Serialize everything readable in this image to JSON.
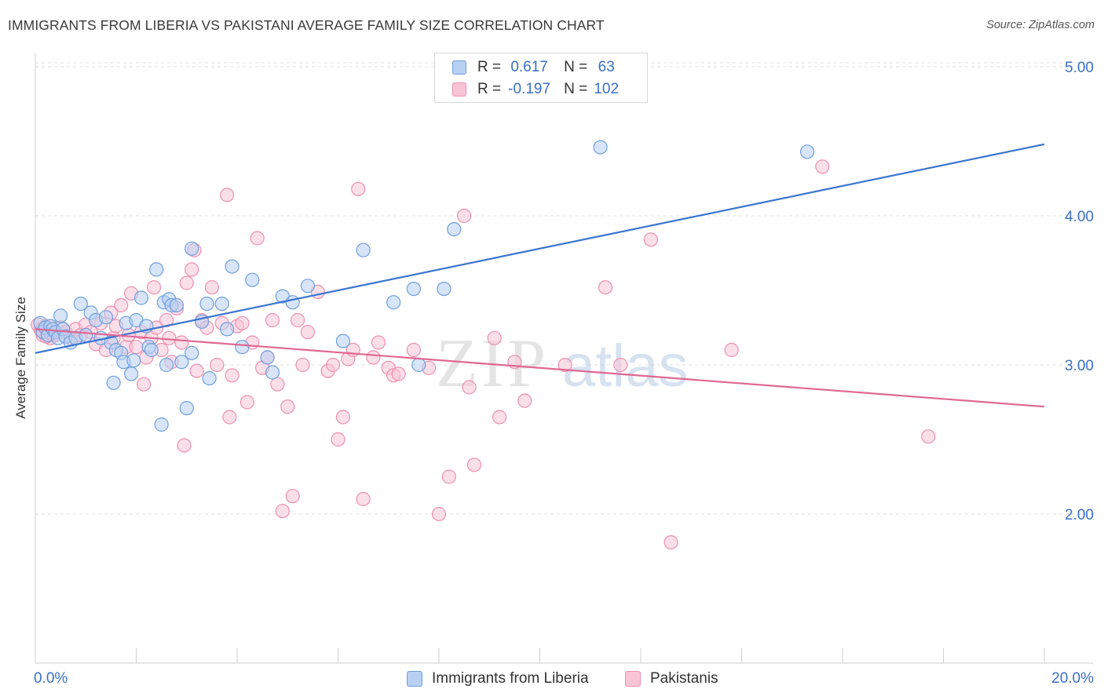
{
  "header": {
    "title": "IMMIGRANTS FROM LIBERIA VS PAKISTANI AVERAGE FAMILY SIZE CORRELATION CHART",
    "source": "Source: ZipAtlas.com"
  },
  "stats_legend": {
    "r_label": "R =",
    "n_label": "N =",
    "rows": [
      {
        "r": "0.617",
        "n": "63",
        "color": "#6fa0e0",
        "fill": "#b8d0f2"
      },
      {
        "r": "-0.197",
        "n": "102",
        "color": "#ee90b0",
        "fill": "#f8c4d6"
      }
    ]
  },
  "bottom_legend": [
    {
      "label": "Immigrants from Liberia",
      "fill": "#b8d0f2",
      "stroke": "#6fa0e0"
    },
    {
      "label": "Pakistanis",
      "fill": "#f8c4d6",
      "stroke": "#ee90b0"
    }
  ],
  "watermark": {
    "zip": "ZIP",
    "atlas": "atlas"
  },
  "chart_data": {
    "type": "scatter",
    "title": "IMMIGRANTS FROM LIBERIA VS PAKISTANI AVERAGE FAMILY SIZE CORRELATION CHART",
    "xlabel": "",
    "ylabel": "Average Family Size",
    "xlim": [
      0,
      20
    ],
    "ylim": [
      1.0,
      5.0
    ],
    "x_tick_labels": [
      "0.0%",
      "20.0%"
    ],
    "y_ticks": [
      2.0,
      3.0,
      4.0,
      5.0
    ],
    "y_tick_labels": [
      "2.00",
      "3.00",
      "4.00",
      "5.00"
    ],
    "grid": true,
    "legend_placement": "top-center",
    "series": [
      {
        "name": "Immigrants from Liberia",
        "color": "#3a75d0",
        "points": [
          [
            0.1,
            3.28
          ],
          [
            0.15,
            3.22
          ],
          [
            0.2,
            3.25
          ],
          [
            0.25,
            3.2
          ],
          [
            0.3,
            3.26
          ],
          [
            0.35,
            3.24
          ],
          [
            0.4,
            3.22
          ],
          [
            0.45,
            3.18
          ],
          [
            0.5,
            3.33
          ],
          [
            0.55,
            3.24
          ],
          [
            0.6,
            3.19
          ],
          [
            0.7,
            3.15
          ],
          [
            0.8,
            3.18
          ],
          [
            0.9,
            3.41
          ],
          [
            1.0,
            3.2
          ],
          [
            1.1,
            3.35
          ],
          [
            1.2,
            3.3
          ],
          [
            1.3,
            3.18
          ],
          [
            1.4,
            3.32
          ],
          [
            1.5,
            3.15
          ],
          [
            1.55,
            2.88
          ],
          [
            1.6,
            3.1
          ],
          [
            1.7,
            3.08
          ],
          [
            1.75,
            3.02
          ],
          [
            1.8,
            3.28
          ],
          [
            1.9,
            2.94
          ],
          [
            1.95,
            3.03
          ],
          [
            2.0,
            3.3
          ],
          [
            2.1,
            3.45
          ],
          [
            2.2,
            3.26
          ],
          [
            2.25,
            3.12
          ],
          [
            2.3,
            3.1
          ],
          [
            2.4,
            3.64
          ],
          [
            2.5,
            2.6
          ],
          [
            2.55,
            3.42
          ],
          [
            2.6,
            3.0
          ],
          [
            2.65,
            3.44
          ],
          [
            2.7,
            3.4
          ],
          [
            2.8,
            3.4
          ],
          [
            2.9,
            3.02
          ],
          [
            3.0,
            2.71
          ],
          [
            3.1,
            3.08
          ],
          [
            3.1,
            3.78
          ],
          [
            3.3,
            3.29
          ],
          [
            3.4,
            3.41
          ],
          [
            3.45,
            2.91
          ],
          [
            3.7,
            3.41
          ],
          [
            3.8,
            3.24
          ],
          [
            3.9,
            3.66
          ],
          [
            4.1,
            3.12
          ],
          [
            4.3,
            3.57
          ],
          [
            4.6,
            3.05
          ],
          [
            4.7,
            2.95
          ],
          [
            4.9,
            3.46
          ],
          [
            5.1,
            3.42
          ],
          [
            5.4,
            3.53
          ],
          [
            6.1,
            3.16
          ],
          [
            6.5,
            3.77
          ],
          [
            7.1,
            3.42
          ],
          [
            7.5,
            3.51
          ],
          [
            7.6,
            3.0
          ],
          [
            8.1,
            3.51
          ],
          [
            8.3,
            3.91
          ],
          [
            11.2,
            4.46
          ],
          [
            15.3,
            4.43
          ]
        ],
        "trend": {
          "x": [
            0,
            20
          ],
          "y": [
            3.08,
            4.48
          ]
        }
      },
      {
        "name": "Pakistanis",
        "color": "#e06892",
        "points": [
          [
            0.1,
            3.24
          ],
          [
            0.15,
            3.2
          ],
          [
            0.2,
            3.26
          ],
          [
            0.25,
            3.22
          ],
          [
            0.3,
            3.18
          ],
          [
            0.35,
            3.24
          ],
          [
            0.4,
            3.2
          ],
          [
            0.5,
            3.25
          ],
          [
            0.6,
            3.22
          ],
          [
            0.7,
            3.18
          ],
          [
            0.8,
            3.24
          ],
          [
            0.9,
            3.2
          ],
          [
            1.0,
            3.27
          ],
          [
            1.1,
            3.22
          ],
          [
            1.2,
            3.14
          ],
          [
            1.3,
            3.28
          ],
          [
            1.4,
            3.1
          ],
          [
            1.5,
            3.35
          ],
          [
            1.55,
            3.18
          ],
          [
            1.6,
            3.26
          ],
          [
            1.7,
            3.4
          ],
          [
            1.8,
            3.12
          ],
          [
            1.85,
            3.2
          ],
          [
            1.9,
            3.48
          ],
          [
            2.0,
            3.12
          ],
          [
            2.1,
            3.22
          ],
          [
            2.15,
            2.87
          ],
          [
            2.2,
            3.05
          ],
          [
            2.3,
            3.18
          ],
          [
            2.35,
            3.52
          ],
          [
            2.4,
            3.25
          ],
          [
            2.5,
            3.1
          ],
          [
            2.6,
            3.3
          ],
          [
            2.65,
            3.18
          ],
          [
            2.7,
            3.02
          ],
          [
            2.8,
            3.38
          ],
          [
            2.9,
            3.15
          ],
          [
            2.95,
            2.46
          ],
          [
            3.0,
            3.55
          ],
          [
            3.1,
            3.64
          ],
          [
            3.15,
            3.77
          ],
          [
            3.2,
            2.96
          ],
          [
            3.3,
            3.3
          ],
          [
            3.4,
            3.25
          ],
          [
            3.5,
            3.52
          ],
          [
            3.6,
            3.0
          ],
          [
            3.7,
            3.28
          ],
          [
            3.8,
            4.14
          ],
          [
            3.85,
            2.65
          ],
          [
            3.9,
            2.93
          ],
          [
            4.0,
            3.26
          ],
          [
            4.1,
            3.28
          ],
          [
            4.2,
            2.75
          ],
          [
            4.3,
            3.15
          ],
          [
            4.4,
            3.85
          ],
          [
            4.5,
            2.98
          ],
          [
            4.6,
            3.05
          ],
          [
            4.7,
            3.3
          ],
          [
            4.8,
            2.87
          ],
          [
            4.9,
            2.02
          ],
          [
            5.0,
            2.72
          ],
          [
            5.1,
            2.12
          ],
          [
            5.2,
            3.3
          ],
          [
            5.3,
            3.0
          ],
          [
            5.4,
            3.22
          ],
          [
            5.6,
            3.49
          ],
          [
            5.8,
            2.96
          ],
          [
            5.9,
            3.0
          ],
          [
            6.0,
            2.5
          ],
          [
            6.1,
            2.65
          ],
          [
            6.2,
            3.04
          ],
          [
            6.3,
            3.1
          ],
          [
            6.4,
            4.18
          ],
          [
            6.5,
            2.1
          ],
          [
            6.7,
            3.05
          ],
          [
            6.8,
            3.15
          ],
          [
            7.0,
            2.98
          ],
          [
            7.1,
            2.93
          ],
          [
            7.2,
            2.94
          ],
          [
            7.5,
            3.1
          ],
          [
            7.8,
            2.98
          ],
          [
            8.0,
            2.0
          ],
          [
            8.2,
            2.25
          ],
          [
            8.5,
            4.0
          ],
          [
            8.6,
            2.85
          ],
          [
            8.7,
            2.33
          ],
          [
            9.1,
            3.18
          ],
          [
            9.2,
            2.65
          ],
          [
            9.5,
            3.02
          ],
          [
            9.7,
            2.76
          ],
          [
            10.5,
            3.0
          ],
          [
            11.3,
            3.52
          ],
          [
            11.6,
            3.0
          ],
          [
            12.2,
            3.84
          ],
          [
            12.6,
            1.81
          ],
          [
            13.8,
            3.1
          ],
          [
            15.6,
            4.33
          ],
          [
            17.7,
            2.52
          ],
          [
            0.05,
            3.27
          ],
          [
            0.12,
            3.23
          ],
          [
            0.22,
            3.19
          ],
          [
            0.32,
            3.21
          ]
        ],
        "trend": {
          "x": [
            0,
            20
          ],
          "y": [
            3.24,
            2.72
          ]
        }
      }
    ]
  }
}
